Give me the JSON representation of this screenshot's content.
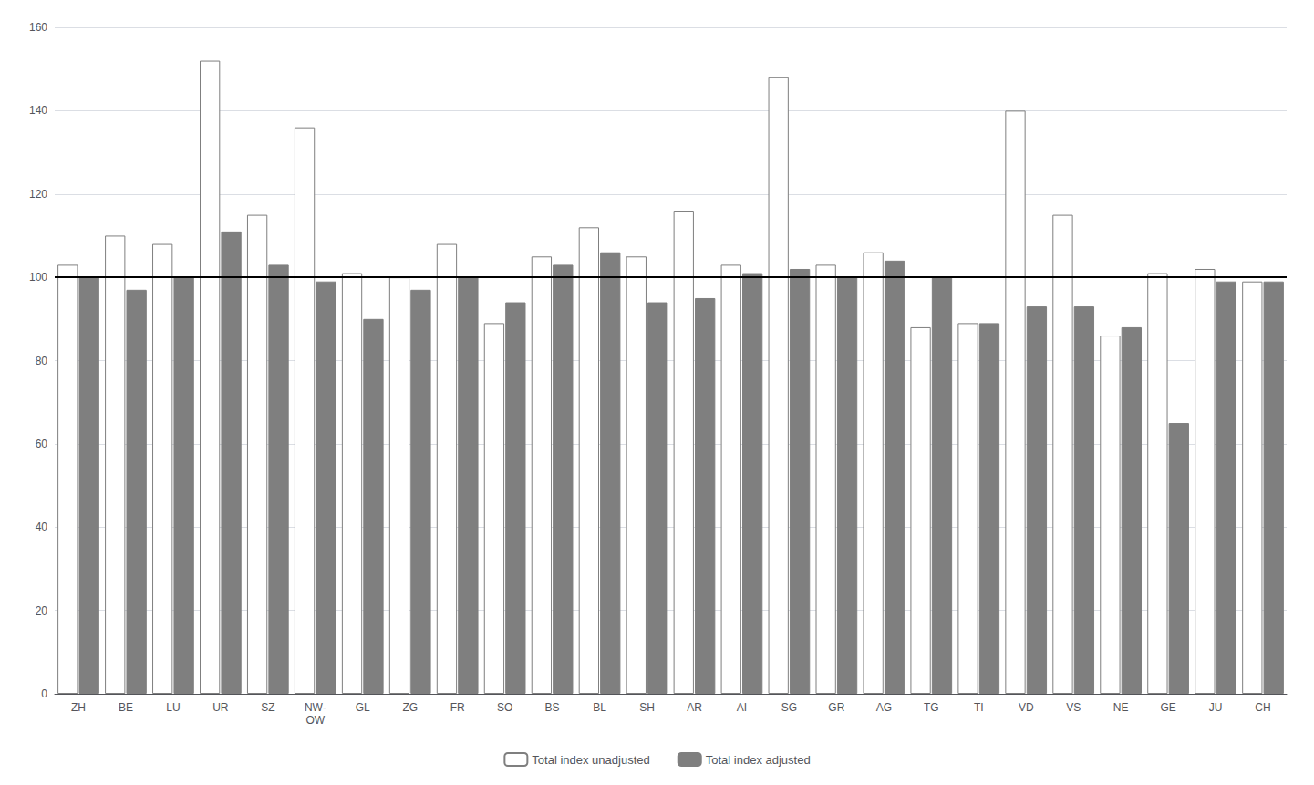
{
  "chart_data": {
    "type": "bar",
    "categories": [
      "ZH",
      "BE",
      "LU",
      "UR",
      "SZ",
      "NW-\nOW",
      "GL",
      "ZG",
      "FR",
      "SO",
      "BS",
      "BL",
      "SH",
      "AR",
      "AI",
      "SG",
      "GR",
      "AG",
      "TG",
      "TI",
      "VD",
      "VS",
      "NE",
      "GE",
      "JU",
      "CH"
    ],
    "series": [
      {
        "name": "Total index unadjusted",
        "color": "#ffffff",
        "values": [
          103,
          110,
          108,
          152,
          115,
          136,
          101,
          100,
          108,
          89,
          105,
          112,
          105,
          116,
          103,
          148,
          103,
          106,
          88,
          89,
          140,
          115,
          86,
          101,
          102,
          99
        ]
      },
      {
        "name": "Total index adjusted",
        "color": "#7f7f7f",
        "values": [
          100,
          97,
          100,
          111,
          103,
          99,
          90,
          97,
          100,
          94,
          103,
          106,
          94,
          95,
          101,
          102,
          100,
          104,
          100,
          89,
          93,
          93,
          88,
          65,
          99,
          99
        ]
      }
    ],
    "ylim": [
      0,
      160
    ],
    "yticks": [
      0,
      20,
      40,
      60,
      80,
      100,
      120,
      140,
      160
    ],
    "grid": true,
    "legend": "bottom",
    "reference_line": 100
  }
}
